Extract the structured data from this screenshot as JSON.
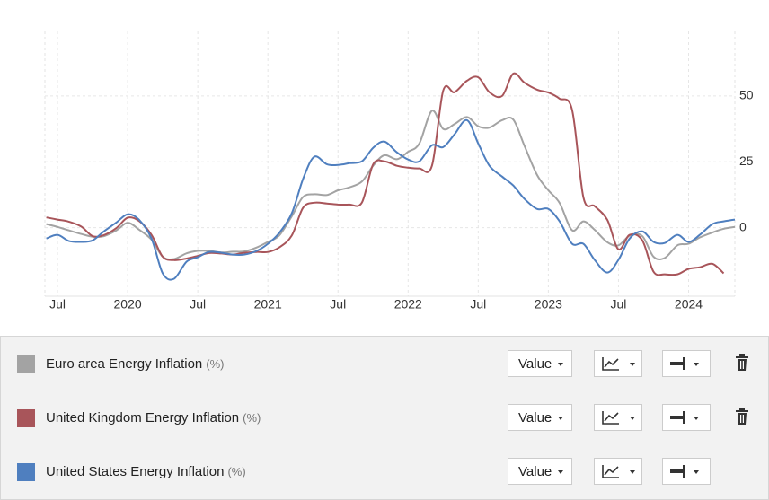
{
  "chart_data": {
    "type": "line",
    "x": [
      2019.42,
      2019.5,
      2019.58,
      2019.67,
      2019.75,
      2019.83,
      2019.92,
      2020.0,
      2020.08,
      2020.17,
      2020.25,
      2020.33,
      2020.42,
      2020.5,
      2020.58,
      2020.67,
      2020.75,
      2020.83,
      2020.92,
      2021.0,
      2021.08,
      2021.17,
      2021.25,
      2021.33,
      2021.42,
      2021.5,
      2021.58,
      2021.67,
      2021.75,
      2021.83,
      2021.92,
      2022.0,
      2022.08,
      2022.17,
      2022.25,
      2022.33,
      2022.42,
      2022.5,
      2022.58,
      2022.67,
      2022.75,
      2022.83,
      2022.92,
      2023.0,
      2023.08,
      2023.17,
      2023.25,
      2023.33,
      2023.42,
      2023.5,
      2023.58,
      2023.67,
      2023.75,
      2023.83,
      2023.92,
      2024.0,
      2024.08,
      2024.17,
      2024.25,
      2024.33
    ],
    "xlim": [
      2019.41,
      2024.33
    ],
    "xticks": [
      {
        "value": 2019.5,
        "label": "Jul"
      },
      2020,
      {
        "value": 2020.5,
        "label": "Jul"
      },
      2021,
      {
        "value": 2021.5,
        "label": "Jul"
      },
      2022,
      {
        "value": 2022.5,
        "label": "Jul"
      },
      2023,
      {
        "value": 2023.5,
        "label": "Jul"
      },
      2024
    ],
    "ylim": [
      -26,
      74.5
    ],
    "yticks": [
      0,
      25,
      50
    ],
    "grid": true,
    "button": "Value",
    "series": [
      {
        "name": "Euro area Energy Inflation",
        "unit": "(%)",
        "color": "#a3a3a3",
        "deletable": true,
        "values": [
          1.4,
          0.3,
          -1,
          -2.4,
          -3.4,
          -3.2,
          -1,
          1.9,
          -0.7,
          -4.5,
          -11,
          -11.9,
          -9.7,
          -8.8,
          -8.8,
          -9.4,
          -9.1,
          -9,
          -7.5,
          -5.4,
          -3,
          4.3,
          11.6,
          12.7,
          12.4,
          14.2,
          15.3,
          17.5,
          23.5,
          27.5,
          26,
          28.8,
          32,
          44.4,
          37.5,
          39.3,
          42,
          38.5,
          38,
          40.8,
          41,
          31,
          20,
          14.2,
          9.4,
          -1,
          2.4,
          -0.8,
          -5.5,
          -6.7,
          -3,
          -3.2,
          -11,
          -11.5,
          -6.7,
          -6.1,
          -3.7,
          -1.8,
          -0.4,
          0.3
        ]
      },
      {
        "name": "United Kingdom Energy Inflation",
        "unit": "(%)",
        "color": "#a8555a",
        "deletable": true,
        "values": [
          3.9,
          3.1,
          2.3,
          0.4,
          -3.2,
          -2.8,
          -0.1,
          3.8,
          2.6,
          -2.7,
          -11,
          -12.3,
          -11.7,
          -10.7,
          -9.6,
          -9.8,
          -10.2,
          -9.5,
          -9.2,
          -9.2,
          -7.5,
          -3,
          7.5,
          9.5,
          9.2,
          8.8,
          8.8,
          9.5,
          24,
          25.2,
          23.5,
          22.8,
          22.5,
          23.5,
          52,
          51.4,
          55.8,
          57.1,
          51.4,
          50,
          58.5,
          55,
          52.4,
          51.3,
          49,
          44.6,
          11.5,
          8.2,
          3,
          -8.2,
          -2.7,
          -4.8,
          -16.7,
          -17.7,
          -17.7,
          -15.6,
          -15,
          -13.7,
          -17.3,
          null
        ]
      },
      {
        "name": "United States Energy Inflation",
        "unit": "(%)",
        "color": "#4f7fbf",
        "deletable": false,
        "values": [
          -4.1,
          -2.7,
          -5,
          -5.4,
          -4.8,
          -1.4,
          2,
          5.1,
          3.1,
          -4.1,
          -17.3,
          -19.4,
          -12.9,
          -11.2,
          -9.2,
          -9.5,
          -10.2,
          -10.2,
          -8.8,
          -6.1,
          -2,
          5.4,
          18.4,
          26.9,
          24.1,
          23.8,
          24.5,
          25.2,
          30.3,
          32.7,
          28.6,
          25.9,
          25.2,
          31.3,
          30.6,
          35.4,
          40.8,
          32,
          23.5,
          19.4,
          16,
          10.9,
          7.1,
          7.1,
          2.4,
          -6.1,
          -6.1,
          -12.2,
          -17,
          -12.2,
          -4.1,
          -1.4,
          -5.4,
          -5.8,
          -2.7,
          -5.4,
          -2.7,
          1.4,
          2.4,
          3.1
        ]
      }
    ]
  }
}
